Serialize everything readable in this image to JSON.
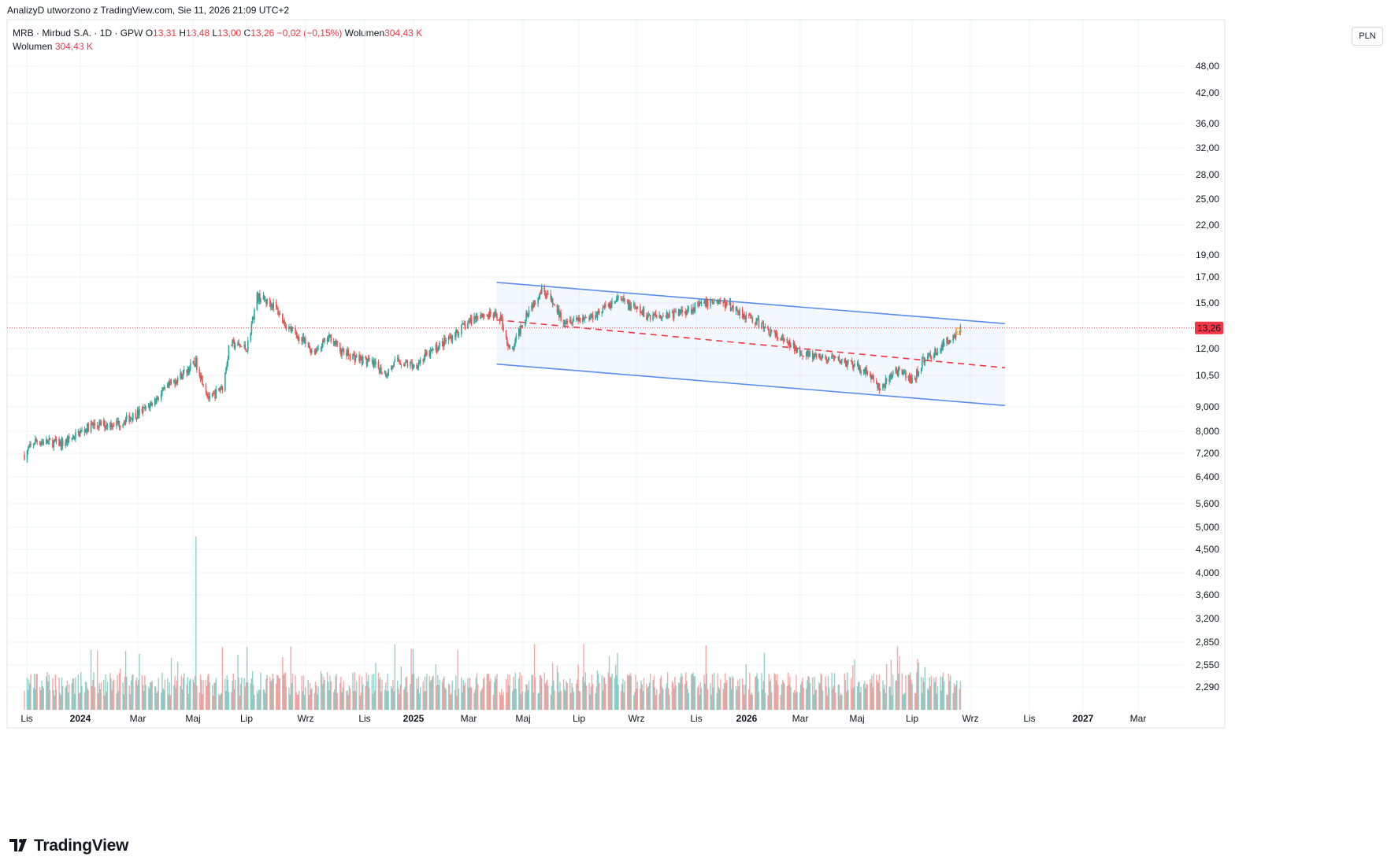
{
  "caption": "AnalizyD utworzono z TradingView.com, Sie 11, 2026 21:09 UTC+2",
  "legend": {
    "symbol": "MRB · Mirbud S.A. · 1D · GPW",
    "open_label": "O",
    "open": "13,31",
    "high_label": "H",
    "high": "13,48",
    "low_label": "L",
    "low": "13,00",
    "close_label": "C",
    "close": "13,26",
    "change": "−0,02 (−0,15%)",
    "volume_label": "Wolumen",
    "volume": "304,43 K",
    "volume_row_label": "Wolumen",
    "volume_row_value": "304,43 K"
  },
  "currency": "PLN",
  "brand": "TradingView",
  "colors": {
    "up": "#26a69a",
    "down": "#ef5350",
    "channel": "#5b8def",
    "midline": "#f23645",
    "price_label": "#f23645",
    "marker": "#ff9800"
  },
  "chart_data": {
    "type": "candlestick",
    "scale": "log",
    "price_ticks": [
      "48,00",
      "42,00",
      "36,00",
      "32,00",
      "28,00",
      "25,00",
      "22,00",
      "19,00",
      "17,00",
      "15,00",
      "12,00",
      "10,50",
      "9,000",
      "8,000",
      "7,200",
      "6,400",
      "5,600",
      "5,000",
      "4,500",
      "4,000",
      "3,600",
      "3,200",
      "2,850",
      "2,550",
      "2,290"
    ],
    "time_labels": [
      "Lis",
      "2024",
      "Mar",
      "Maj",
      "Lip",
      "Wrz",
      "Lis",
      "2025",
      "Mar",
      "Maj",
      "Lip",
      "Wrz",
      "Lis",
      "2026",
      "Mar",
      "Maj",
      "Lip",
      "Wrz",
      "Lis",
      "2027",
      "Mar"
    ],
    "last_price_label": "13,26",
    "marker_label": "D",
    "price_path": [
      [
        "2023-10-20",
        7.1
      ],
      [
        "2023-11-01",
        7.6
      ],
      [
        "2023-12-01",
        7.5
      ],
      [
        "2024-01-01",
        8.2
      ],
      [
        "2024-02-01",
        8.3
      ],
      [
        "2024-03-01",
        8.9
      ],
      [
        "2024-04-01",
        10.2
      ],
      [
        "2024-04-25",
        11.2
      ],
      [
        "2024-05-10",
        9.3
      ],
      [
        "2024-05-25",
        10.0
      ],
      [
        "2024-06-01",
        12.3
      ],
      [
        "2024-06-20",
        12.0
      ],
      [
        "2024-07-01",
        15.5
      ],
      [
        "2024-07-20",
        14.8
      ],
      [
        "2024-08-01",
        13.5
      ],
      [
        "2024-09-01",
        11.8
      ],
      [
        "2024-09-20",
        12.7
      ],
      [
        "2024-10-01",
        11.8
      ],
      [
        "2024-11-01",
        11.2
      ],
      [
        "2024-11-20",
        10.6
      ],
      [
        "2024-12-01",
        11.3
      ],
      [
        "2024-12-20",
        11.0
      ],
      [
        "2025-01-01",
        11.5
      ],
      [
        "2025-02-01",
        12.8
      ],
      [
        "2025-03-01",
        14.2
      ],
      [
        "2025-03-25",
        14.0
      ],
      [
        "2025-04-05",
        11.6
      ],
      [
        "2025-04-20",
        14.0
      ],
      [
        "2025-05-10",
        16.2
      ],
      [
        "2025-06-01",
        13.8
      ],
      [
        "2025-07-01",
        14.0
      ],
      [
        "2025-08-01",
        15.3
      ],
      [
        "2025-09-01",
        14.1
      ],
      [
        "2025-10-01",
        14.2
      ],
      [
        "2025-11-15",
        15.2
      ],
      [
        "2025-12-01",
        14.8
      ],
      [
        "2026-01-01",
        13.6
      ],
      [
        "2026-02-01",
        12.3
      ],
      [
        "2026-03-01",
        11.5
      ],
      [
        "2026-04-01",
        11.3
      ],
      [
        "2026-05-01",
        10.7
      ],
      [
        "2026-05-15",
        9.75
      ],
      [
        "2026-06-01",
        10.8
      ],
      [
        "2026-06-20",
        10.2
      ],
      [
        "2026-07-01",
        11.3
      ],
      [
        "2026-07-20",
        12.0
      ],
      [
        "2026-08-11",
        13.26
      ]
    ],
    "channel": {
      "upper": [
        [
          "2025-04-01",
          16.6
        ],
        [
          "2026-10-10",
          13.55
        ]
      ],
      "lower": [
        [
          "2025-04-01",
          11.1
        ],
        [
          "2026-10-10",
          9.05
        ]
      ],
      "mid": [
        [
          "2025-04-01",
          13.8
        ],
        [
          "2026-10-10",
          10.9
        ]
      ]
    }
  }
}
